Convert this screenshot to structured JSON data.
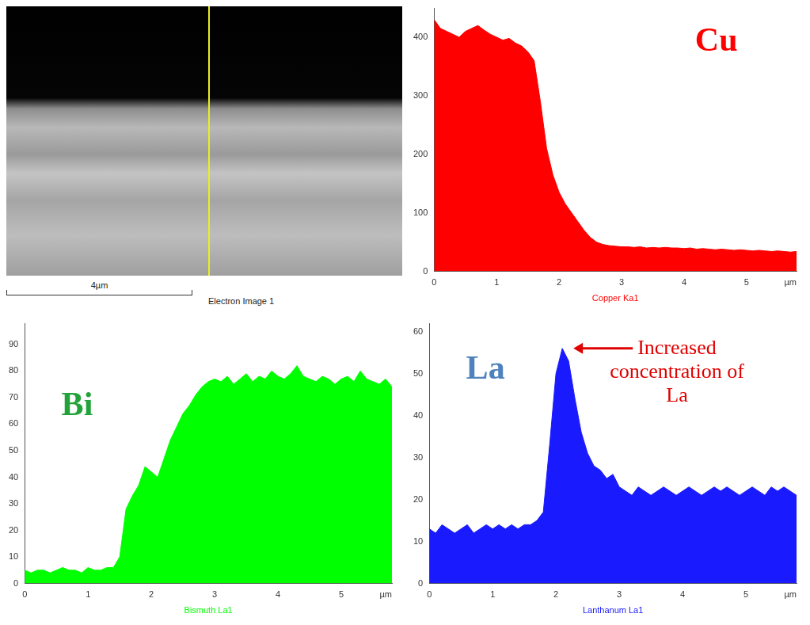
{
  "image": {
    "scale_bar": "4µm",
    "caption": "Electron Image 1"
  },
  "chart_data": [
    {
      "type": "area",
      "title": "Cu",
      "xlabel": "Copper Ka1",
      "x_unit": "µm",
      "color": "#ff0000",
      "grid": false,
      "xlim": [
        0,
        5.8
      ],
      "xticks": [
        0,
        1,
        2,
        3,
        4,
        5
      ],
      "ylim": [
        0,
        450
      ],
      "yticks": [
        0,
        100,
        200,
        300,
        400
      ],
      "x": [
        0,
        0.1,
        0.2,
        0.3,
        0.4,
        0.5,
        0.6,
        0.7,
        0.8,
        0.9,
        1,
        1.1,
        1.2,
        1.3,
        1.4,
        1.5,
        1.6,
        1.7,
        1.8,
        1.9,
        2,
        2.1,
        2.2,
        2.3,
        2.4,
        2.5,
        2.6,
        2.7,
        2.8,
        2.9,
        3,
        3.1,
        3.2,
        3.3,
        3.4,
        3.5,
        3.6,
        3.7,
        3.8,
        3.9,
        4,
        4.1,
        4.2,
        4.3,
        4.4,
        4.5,
        4.6,
        4.7,
        4.8,
        4.9,
        5,
        5.1,
        5.2,
        5.3,
        5.4,
        5.5,
        5.6,
        5.7,
        5.8
      ],
      "values": [
        430,
        415,
        410,
        405,
        400,
        410,
        415,
        420,
        412,
        405,
        400,
        395,
        398,
        390,
        385,
        375,
        360,
        290,
        210,
        165,
        135,
        115,
        100,
        85,
        70,
        58,
        50,
        46,
        44,
        43,
        42,
        42,
        41,
        42,
        40,
        41,
        40,
        41,
        40,
        40,
        39,
        40,
        38,
        39,
        38,
        37,
        38,
        37,
        36,
        37,
        36,
        35,
        36,
        35,
        34,
        35,
        34,
        33,
        34
      ]
    },
    {
      "type": "area",
      "title": "Bi",
      "xlabel": "Bismuth La1",
      "x_unit": "µm",
      "color": "#00ff00",
      "grid": false,
      "xlim": [
        0,
        5.8
      ],
      "xticks": [
        0,
        1,
        2,
        3,
        4,
        5
      ],
      "ylim": [
        0,
        98
      ],
      "yticks": [
        0,
        10,
        20,
        30,
        40,
        50,
        60,
        70,
        80,
        90
      ],
      "x": [
        0,
        0.1,
        0.2,
        0.3,
        0.4,
        0.5,
        0.6,
        0.7,
        0.8,
        0.9,
        1,
        1.1,
        1.2,
        1.3,
        1.4,
        1.5,
        1.6,
        1.7,
        1.8,
        1.9,
        2,
        2.1,
        2.2,
        2.3,
        2.4,
        2.5,
        2.6,
        2.7,
        2.8,
        2.9,
        3,
        3.1,
        3.2,
        3.3,
        3.4,
        3.5,
        3.6,
        3.7,
        3.8,
        3.9,
        4,
        4.1,
        4.2,
        4.3,
        4.4,
        4.5,
        4.6,
        4.7,
        4.8,
        4.9,
        5,
        5.1,
        5.2,
        5.3,
        5.4,
        5.5,
        5.6,
        5.7,
        5.8
      ],
      "values": [
        5,
        4,
        5,
        5,
        4,
        5,
        6,
        5,
        5,
        4,
        6,
        5,
        5,
        6,
        6,
        10,
        28,
        33,
        37,
        44,
        42,
        40,
        47,
        54,
        59,
        64,
        67,
        71,
        74,
        76,
        77,
        76,
        78,
        75,
        77,
        79,
        76,
        78,
        77,
        80,
        78,
        77,
        79,
        82,
        78,
        77,
        76,
        78,
        77,
        75,
        77,
        78,
        76,
        80,
        77,
        76,
        75,
        77,
        74
      ]
    },
    {
      "type": "area",
      "title": "La",
      "xlabel": "Lanthanum La1",
      "x_unit": "µm",
      "color": "#1a1aff",
      "grid": false,
      "annotation": "Increased concentration of La",
      "xlim": [
        0,
        5.8
      ],
      "xticks": [
        0,
        1,
        2,
        3,
        4,
        5
      ],
      "ylim": [
        0,
        62
      ],
      "yticks": [
        0,
        10,
        20,
        30,
        40,
        50,
        60
      ],
      "x": [
        0,
        0.1,
        0.2,
        0.3,
        0.4,
        0.5,
        0.6,
        0.7,
        0.8,
        0.9,
        1,
        1.1,
        1.2,
        1.3,
        1.4,
        1.5,
        1.6,
        1.7,
        1.8,
        1.9,
        2,
        2.1,
        2.2,
        2.3,
        2.4,
        2.5,
        2.6,
        2.7,
        2.8,
        2.9,
        3,
        3.1,
        3.2,
        3.3,
        3.4,
        3.5,
        3.6,
        3.7,
        3.8,
        3.9,
        4,
        4.1,
        4.2,
        4.3,
        4.4,
        4.5,
        4.6,
        4.7,
        4.8,
        4.9,
        5,
        5.1,
        5.2,
        5.3,
        5.4,
        5.5,
        5.6,
        5.7,
        5.8
      ],
      "values": [
        13,
        12,
        14,
        13,
        12,
        13,
        14,
        12,
        13,
        14,
        13,
        14,
        13,
        14,
        13,
        14,
        14,
        15,
        17,
        33,
        50,
        56,
        53,
        44,
        36,
        31,
        28,
        27,
        25,
        26,
        23,
        22,
        21,
        23,
        22,
        21,
        22,
        23,
        22,
        21,
        22,
        23,
        22,
        21,
        22,
        23,
        22,
        23,
        22,
        21,
        22,
        23,
        22,
        21,
        23,
        22,
        23,
        22,
        21
      ]
    }
  ]
}
